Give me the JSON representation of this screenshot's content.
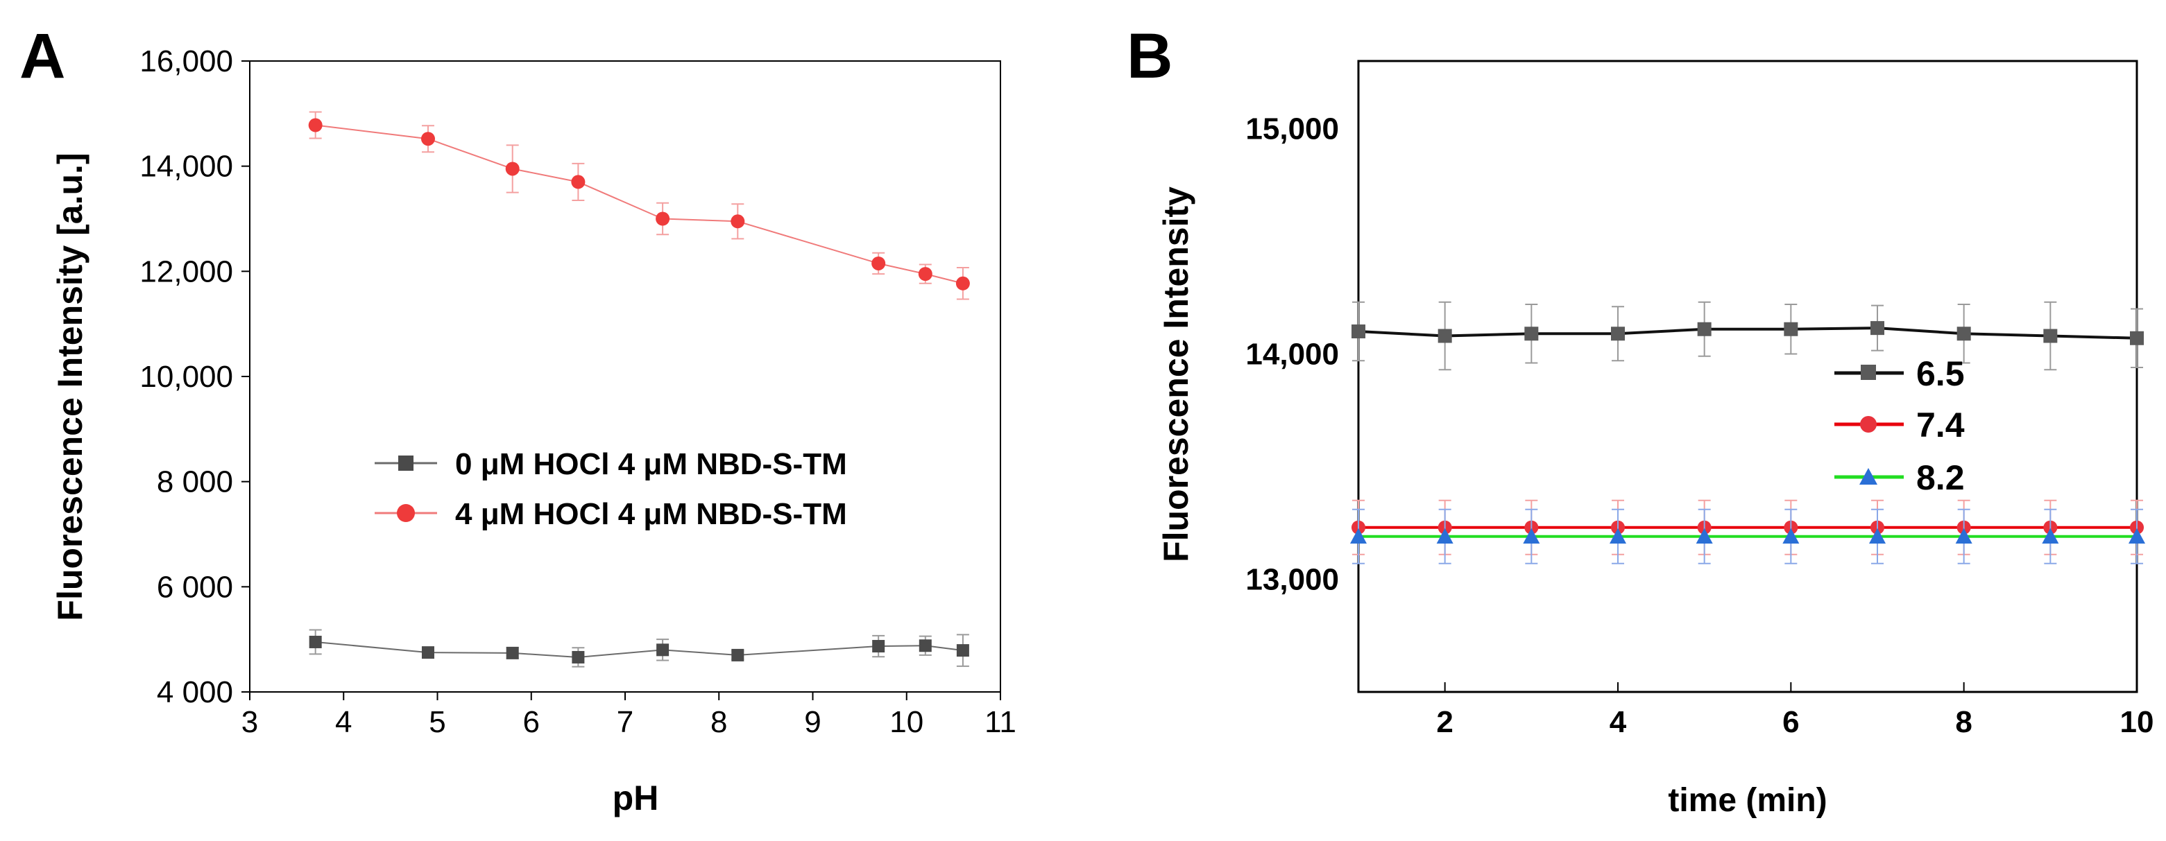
{
  "chart_data": [
    {
      "panel_label": "A",
      "type": "line",
      "xlabel": "pH",
      "ylabel": "Fluorescence Intensity [a.u.]",
      "xlim": [
        3,
        11
      ],
      "ylim": [
        4000,
        16000
      ],
      "x_ticks": [
        3,
        4,
        5,
        6,
        7,
        8,
        9,
        10,
        11
      ],
      "x_tick_labels": [
        "3",
        "4",
        "5",
        "6",
        "7",
        "8",
        "9",
        "10",
        "11"
      ],
      "y_ticks": [
        4000,
        6000,
        8000,
        10000,
        12000,
        14000,
        16000
      ],
      "y_tick_labels": [
        "4 000",
        "6 000",
        "8 000",
        "10,000",
        "12,000",
        "14,000",
        "16,000"
      ],
      "grid": false,
      "legend_position": "center",
      "series": [
        {
          "name": "0 μM HOCl 4 μM NBD-S-TM",
          "color": "#6b6b6b",
          "point_color": "#4a4a4a",
          "marker": "square",
          "x": [
            3.7,
            4.9,
            5.8,
            6.5,
            7.4,
            8.2,
            9.7,
            10.2,
            10.6
          ],
          "values": [
            4950,
            4750,
            4740,
            4660,
            4800,
            4700,
            4870,
            4880,
            4790
          ],
          "errors": [
            230,
            100,
            100,
            180,
            200,
            80,
            200,
            180,
            300
          ]
        },
        {
          "name": "4 μM HOCl 4 μM NBD-S-TM",
          "color": "#f07a7a",
          "point_color": "#ee3b3b",
          "marker": "circle",
          "x": [
            3.7,
            4.9,
            5.8,
            6.5,
            7.4,
            8.2,
            9.7,
            10.2,
            10.6
          ],
          "values": [
            14780,
            14520,
            13950,
            13700,
            13000,
            12950,
            12150,
            11950,
            11770
          ],
          "errors": [
            250,
            250,
            450,
            350,
            300,
            330,
            200,
            180,
            300
          ]
        }
      ]
    },
    {
      "panel_label": "B",
      "type": "line",
      "xlabel": "time (min)",
      "ylabel": "Fluorescence Intensity",
      "xlim": [
        1,
        10
      ],
      "ylim": [
        12500,
        15300
      ],
      "x_ticks": [
        2,
        4,
        6,
        8,
        10
      ],
      "x_tick_labels": [
        "2",
        "4",
        "6",
        "8",
        "10"
      ],
      "y_ticks": [
        13000,
        14000,
        15000
      ],
      "y_tick_labels": [
        "13,000",
        "14,000",
        "15,000"
      ],
      "grid": false,
      "legend_position": "center-right",
      "series": [
        {
          "name": "6.5",
          "color": "#111111",
          "point_color": "#5a5a5a",
          "marker": "square",
          "x": [
            1,
            2,
            3,
            4,
            5,
            6,
            7,
            8,
            9,
            10
          ],
          "values": [
            14100,
            14080,
            14090,
            14090,
            14110,
            14110,
            14115,
            14090,
            14080,
            14070
          ],
          "errors": [
            130,
            150,
            130,
            120,
            120,
            110,
            100,
            130,
            150,
            130
          ]
        },
        {
          "name": "7.4",
          "color": "#e8000c",
          "point_color": "#e8323c",
          "marker": "circle",
          "x": [
            1,
            2,
            3,
            4,
            5,
            6,
            7,
            8,
            9,
            10
          ],
          "values": [
            13230,
            13230,
            13230,
            13230,
            13230,
            13230,
            13230,
            13230,
            13230,
            13230
          ],
          "errors": [
            120,
            120,
            120,
            120,
            120,
            120,
            120,
            120,
            120,
            120
          ]
        },
        {
          "name": "8.2",
          "color": "#22dd22",
          "point_color": "#2a6fd6",
          "marker": "triangle",
          "x": [
            1,
            2,
            3,
            4,
            5,
            6,
            7,
            8,
            9,
            10
          ],
          "values": [
            13190,
            13190,
            13190,
            13190,
            13190,
            13190,
            13190,
            13190,
            13190,
            13190
          ],
          "errors": [
            120,
            120,
            120,
            120,
            120,
            120,
            120,
            120,
            120,
            120
          ]
        }
      ]
    }
  ]
}
